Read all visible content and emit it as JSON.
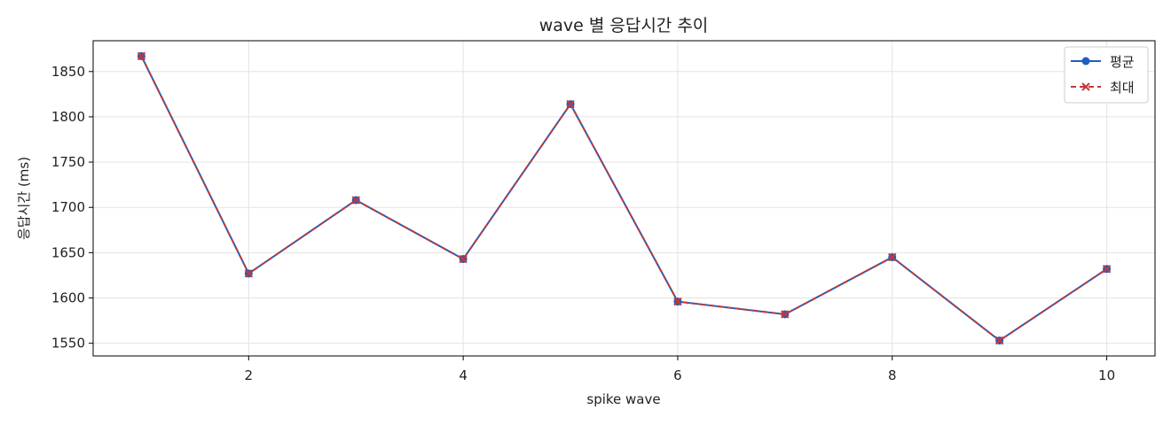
{
  "chart_data": {
    "type": "line",
    "title": "wave 별 응답시간 추이",
    "xlabel": "spike wave",
    "ylabel": "응답시간 (ms)",
    "x": [
      1,
      2,
      3,
      4,
      5,
      6,
      7,
      8,
      9,
      10
    ],
    "xlim": [
      0.55,
      10.45
    ],
    "ylim": [
      1536,
      1884
    ],
    "xticks": [
      2,
      4,
      6,
      8,
      10
    ],
    "yticks": [
      1550,
      1600,
      1650,
      1700,
      1750,
      1800,
      1850
    ],
    "grid": true,
    "legend_position": "top-right",
    "series": [
      {
        "name": "평균",
        "values": [
          1867,
          1627,
          1708,
          1643,
          1814,
          1596,
          1582,
          1645,
          1553,
          1632
        ],
        "color": "#1f5fbf",
        "marker": "circle",
        "linestyle": "solid"
      },
      {
        "name": "최대",
        "values": [
          1867,
          1627,
          1708,
          1643,
          1814,
          1596,
          1582,
          1645,
          1553,
          1632
        ],
        "color": "#c0393b",
        "marker": "x",
        "linestyle": "dashed"
      }
    ]
  }
}
